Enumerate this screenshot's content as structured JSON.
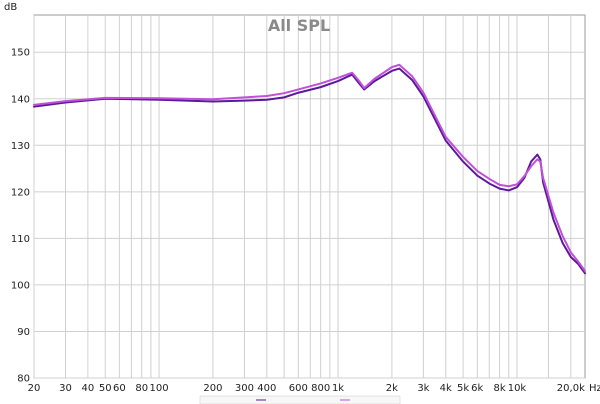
{
  "chart_data": {
    "type": "line",
    "title": "All SPL",
    "ylabel": "dB",
    "xlabel": "Hz",
    "xscale": "log",
    "xlim": [
      20,
      24000
    ],
    "ylim": [
      80,
      158
    ],
    "grid": true,
    "x_ticks": [
      {
        "value": 20,
        "label": "20"
      },
      {
        "value": 30,
        "label": "30"
      },
      {
        "value": 40,
        "label": "40"
      },
      {
        "value": 50,
        "label": "50"
      },
      {
        "value": 60,
        "label": "60"
      },
      {
        "value": 80,
        "label": "80"
      },
      {
        "value": 100,
        "label": "100"
      },
      {
        "value": 200,
        "label": "200"
      },
      {
        "value": 300,
        "label": "300"
      },
      {
        "value": 400,
        "label": "400"
      },
      {
        "value": 600,
        "label": "600"
      },
      {
        "value": 800,
        "label": "800"
      },
      {
        "value": 1000,
        "label": "1k"
      },
      {
        "value": 2000,
        "label": "2k"
      },
      {
        "value": 3000,
        "label": "3k"
      },
      {
        "value": 4000,
        "label": "4k"
      },
      {
        "value": 5000,
        "label": "5k"
      },
      {
        "value": 6000,
        "label": "6k"
      },
      {
        "value": 8000,
        "label": "8k"
      },
      {
        "value": 10000,
        "label": "10k"
      },
      {
        "value": 20000,
        "label": "20,0k"
      }
    ],
    "y_ticks": [
      80,
      90,
      100,
      110,
      120,
      130,
      140,
      150
    ],
    "minor_x_gridlines": [
      70,
      90,
      500,
      700,
      900,
      7000,
      9000,
      15000
    ],
    "legend_placement": "bottom-center",
    "series": [
      {
        "color": "#5a1a9a",
        "x": [
          20,
          30,
          50,
          100,
          200,
          300,
          400,
          500,
          600,
          800,
          1000,
          1200,
          1300,
          1400,
          1600,
          2000,
          2200,
          2600,
          3000,
          4000,
          5000,
          6000,
          7000,
          8000,
          9000,
          10000,
          11000,
          12000,
          13000,
          13500,
          14000,
          16000,
          18000,
          20000,
          22000,
          24000
        ],
        "y": [
          138.3,
          139.2,
          140.0,
          139.8,
          139.4,
          139.6,
          139.8,
          140.3,
          141.3,
          142.5,
          143.8,
          145.2,
          143.5,
          142.0,
          143.8,
          146.0,
          146.5,
          144.0,
          140.5,
          131.0,
          126.5,
          123.5,
          121.8,
          120.7,
          120.3,
          121.0,
          123.0,
          126.5,
          128.0,
          127.0,
          122.0,
          114.0,
          109.0,
          106.0,
          104.5,
          102.5
        ]
      },
      {
        "color": "#c050d8",
        "x": [
          20,
          30,
          50,
          100,
          200,
          300,
          400,
          500,
          600,
          800,
          1000,
          1200,
          1300,
          1400,
          1600,
          2000,
          2200,
          2600,
          3000,
          4000,
          5000,
          6000,
          7000,
          8000,
          9000,
          10000,
          11000,
          12000,
          13000,
          13500,
          14000,
          16000,
          18000,
          20000,
          22000,
          24000
        ],
        "y": [
          138.7,
          139.5,
          140.2,
          140.1,
          139.9,
          140.3,
          140.6,
          141.2,
          142.0,
          143.3,
          144.5,
          145.6,
          144.0,
          142.3,
          144.3,
          146.8,
          147.3,
          144.8,
          141.3,
          131.8,
          127.5,
          124.5,
          122.8,
          121.5,
          121.2,
          121.6,
          123.4,
          125.5,
          127.0,
          126.5,
          123.0,
          115.5,
          110.5,
          107.0,
          105.0,
          103.0
        ]
      }
    ]
  }
}
